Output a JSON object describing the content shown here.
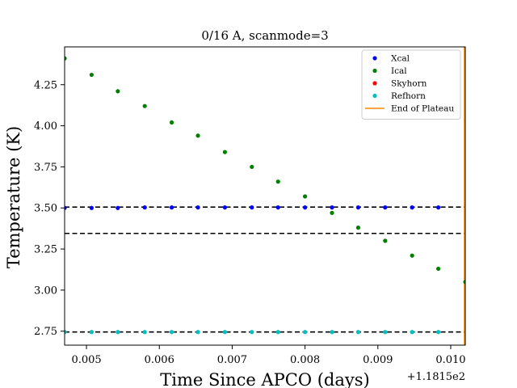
{
  "chart_data": {
    "type": "scatter",
    "title": "0/16 A, scanmode=3",
    "xlabel": "Time Since APCO (days)",
    "ylabel": "Temperature (K)",
    "x_offset_label": "+1.1815e2",
    "xlim": [
      0.0047,
      0.0102
    ],
    "ylim": [
      2.665,
      4.48
    ],
    "xticks": [
      0.005,
      0.006,
      0.007,
      0.008,
      0.009,
      0.01
    ],
    "xtick_labels": [
      "0.005",
      "0.006",
      "0.007",
      "0.008",
      "0.009",
      "0.010"
    ],
    "yticks": [
      2.75,
      3.0,
      3.25,
      3.5,
      3.75,
      4.0,
      4.25
    ],
    "ytick_labels": [
      "2.75",
      "3.00",
      "3.25",
      "3.50",
      "3.75",
      "4.00",
      "4.25"
    ],
    "legend_position": "upper-right",
    "hlines": [
      {
        "y": 3.505,
        "color": "#000000",
        "style": "dashed"
      },
      {
        "y": 3.345,
        "color": "#000000",
        "style": "dashed"
      },
      {
        "y": 2.745,
        "color": "#000000",
        "style": "dashed"
      }
    ],
    "vlines": [
      {
        "x": 0.0102,
        "color": "#ff8c00",
        "series": "End of Plateau"
      }
    ],
    "series": [
      {
        "name": "Xcal",
        "color": "#0000ff",
        "x": [
          0.0047,
          0.00507,
          0.00543,
          0.0058,
          0.00617,
          0.00653,
          0.0069,
          0.00727,
          0.00763,
          0.008,
          0.00837,
          0.00873,
          0.0091,
          0.00947,
          0.00983
        ],
        "y": [
          3.5,
          3.5,
          3.5,
          3.503,
          3.503,
          3.503,
          3.503,
          3.503,
          3.503,
          3.503,
          3.503,
          3.503,
          3.503,
          3.503,
          3.503
        ]
      },
      {
        "name": "Ical",
        "color": "#008000",
        "x": [
          0.0047,
          0.00507,
          0.00543,
          0.0058,
          0.00617,
          0.00653,
          0.0069,
          0.00727,
          0.00763,
          0.008,
          0.00837,
          0.00873,
          0.0091,
          0.00947,
          0.00983,
          0.0102
        ],
        "y": [
          4.41,
          4.31,
          4.21,
          4.12,
          4.02,
          3.94,
          3.84,
          3.75,
          3.66,
          3.57,
          3.47,
          3.38,
          3.3,
          3.21,
          3.13,
          3.05
        ]
      },
      {
        "name": "Skyhorn",
        "color": "#ff0000",
        "x": [],
        "y": []
      },
      {
        "name": "Refhorn",
        "color": "#00bfbf",
        "x": [
          0.0047,
          0.00507,
          0.00543,
          0.0058,
          0.00617,
          0.00653,
          0.0069,
          0.00727,
          0.00763,
          0.008,
          0.00837,
          0.00873,
          0.0091,
          0.00947,
          0.00983
        ],
        "y": [
          2.745,
          2.745,
          2.745,
          2.745,
          2.745,
          2.745,
          2.745,
          2.745,
          2.745,
          2.745,
          2.745,
          2.745,
          2.745,
          2.745,
          2.745
        ]
      }
    ],
    "legend": [
      {
        "label": "Xcal",
        "color": "#0000ff",
        "marker": "dot"
      },
      {
        "label": "Ical",
        "color": "#008000",
        "marker": "dot"
      },
      {
        "label": "Skyhorn",
        "color": "#ff0000",
        "marker": "dot"
      },
      {
        "label": "Refhorn",
        "color": "#00bfbf",
        "marker": "dot"
      },
      {
        "label": "End of Plateau",
        "color": "#ff8c00",
        "marker": "line"
      }
    ]
  }
}
